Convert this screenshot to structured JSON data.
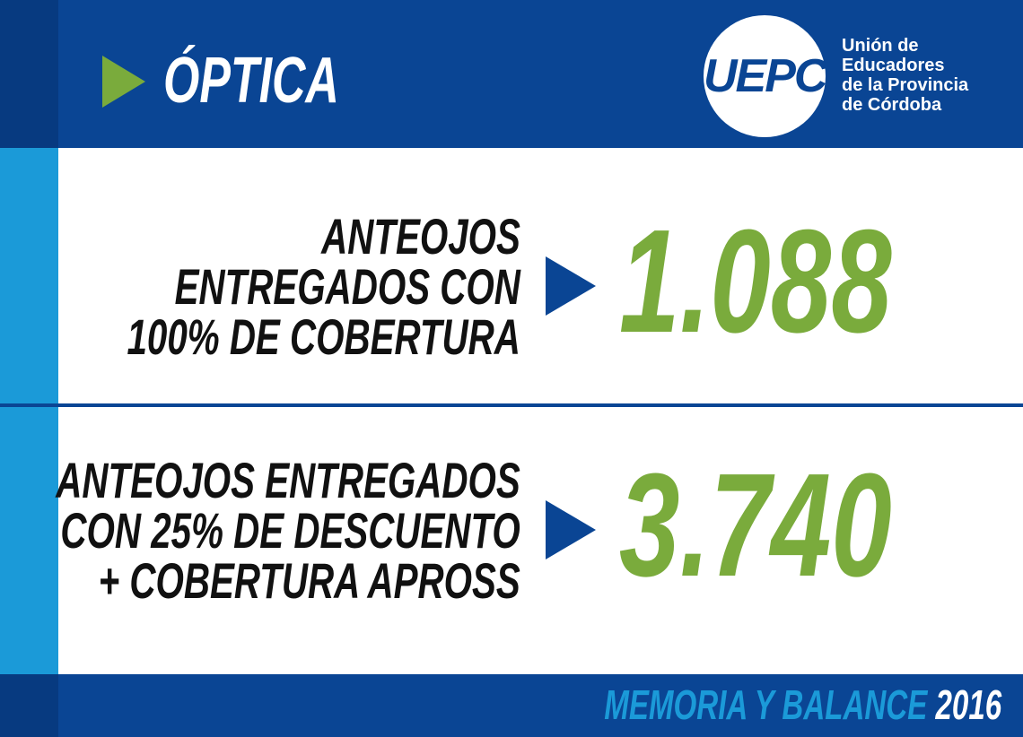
{
  "header": {
    "title": "ÓPTICA"
  },
  "logo": {
    "acronym": "UEPC",
    "name_lines": [
      "Unión de",
      "Educadores",
      "de la Provincia",
      "de Córdoba"
    ]
  },
  "stats": [
    {
      "label_lines": [
        "ANTEOJOS",
        "ENTREGADOS CON",
        "100% DE COBERTURA"
      ],
      "value": "1.088"
    },
    {
      "label_lines": [
        "ANTEOJOS ENTREGADOS",
        "CON 25% DE DESCUENTO",
        "+ COBERTURA APROSS"
      ],
      "value": "3.740"
    }
  ],
  "footer": {
    "label": "MEMORIA Y BALANCE",
    "year": "2016"
  }
}
